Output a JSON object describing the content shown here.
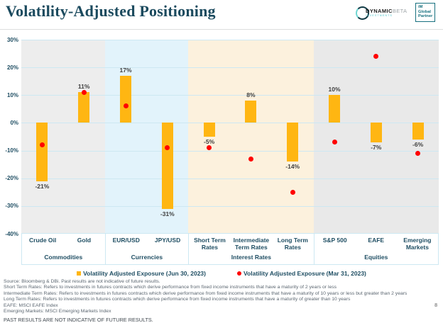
{
  "header": {
    "title": "Volatility-Adjusted Positioning",
    "logos": {
      "dynamic_beta": {
        "primary": "DYNAMIC",
        "secondary": "BETA",
        "tagline": "INVESTMENTS"
      },
      "im_global": {
        "lines": [
          "iM",
          "Global",
          "Partner"
        ]
      }
    }
  },
  "chart_data": {
    "type": "bar",
    "title": "Volatility-Adjusted Positioning",
    "ylim": [
      -40,
      30
    ],
    "ytick_step": 10,
    "ytick_labels": [
      "30%",
      "20%",
      "10%",
      "0%",
      "-10%",
      "-20%",
      "-30%",
      "-40%"
    ],
    "grid": true,
    "legend_position": "bottom",
    "groups": [
      {
        "label": "Commodities",
        "bg": "#EDEDED",
        "items": [
          "Crude Oil",
          "Gold"
        ]
      },
      {
        "label": "Currencies",
        "bg": "#E2F3FB",
        "items": [
          "EUR/USD",
          "JPY/USD"
        ]
      },
      {
        "label": "Interest Rates",
        "bg": "#FCF1DD",
        "items": [
          "Short Term Rates",
          "Intermediate Term Rates",
          "Long Term Rates"
        ]
      },
      {
        "label": "Equities",
        "bg": "#E9E9E9",
        "items": [
          "S&P 500",
          "EAFE",
          "Emerging Markets"
        ]
      }
    ],
    "categories": [
      "Crude Oil",
      "Gold",
      "EUR/USD",
      "JPY/USD",
      "Short Term Rates",
      "Intermediate Term Rates",
      "Long Term Rates",
      "S&P 500",
      "EAFE",
      "Emerging Markets"
    ],
    "series": [
      {
        "name": "Volatility Adjusted Exposure (Jun 30, 2023)",
        "style": "bar",
        "color": "#FFB612",
        "values": [
          -21,
          11,
          17,
          -31,
          -5,
          8,
          -14,
          10,
          -7,
          -6
        ]
      },
      {
        "name": "Volatility Adjusted Exposure (Mar 31, 2023)",
        "style": "point",
        "color": "#FF0000",
        "values": [
          -8,
          11,
          6,
          -9,
          -9,
          -13,
          -25,
          -7,
          24,
          -11
        ]
      }
    ],
    "bar_labels": [
      "-21%",
      "11%",
      "17%",
      "-31%",
      "-5%",
      "8%",
      "-14%",
      "10%",
      "-7%",
      "-6%"
    ]
  },
  "footer": {
    "lines": [
      "Source: Bloomberg & DBi. Past results are not indicative of future results.",
      "Short Term Rates: Refers to investments in futures contracts which derive performance from fixed income instruments that have a maturity of 2 years or less",
      "Intermediate Term Rates: Refers to investments in futures contracts which derive performance from fixed income instruments that have a maturity of 10 years or less but greater than 2 years",
      "Long Term Rates: Refers to investments in futures contracts which derive performance from fixed income instruments that have a maturity of greater than 10 years",
      "EAFE: MSCI EAFE Index",
      "Emerging Markets: MSCI Emerging Markets Index"
    ],
    "disclaimer": "PAST RESULTS ARE NOT INDICATIVE OF FUTURE RESULTS.",
    "page_number": "8"
  }
}
